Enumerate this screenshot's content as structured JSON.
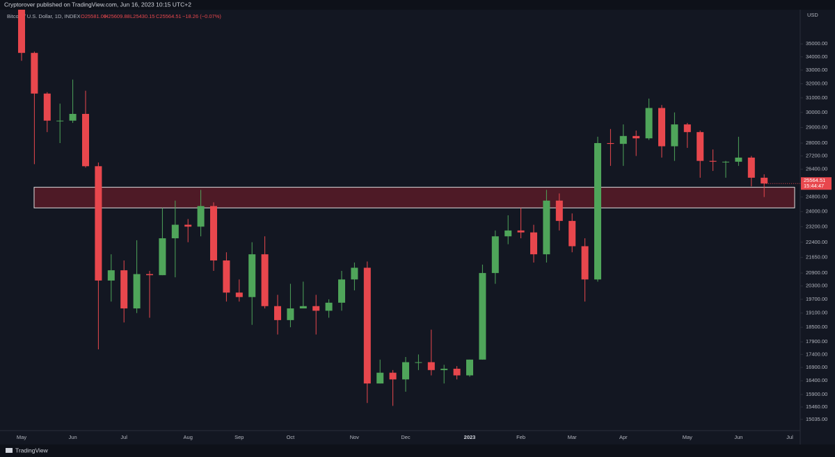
{
  "header": "Cryptorover published on TradingView.com, Jun 16, 2023 10:15 UTC+2",
  "footer": "TradingView",
  "chart_data": {
    "type": "candlestick",
    "legend": {
      "symbol": "Bitcoin / U.S. Dollar, 1D, INDEX",
      "open": "O25581.00",
      "high": "H25609.88",
      "low": "L25430.15",
      "close": "C25564.51",
      "change": "−18.26 (−0.07%)"
    },
    "currency": "USD",
    "price_label": "25564.51",
    "countdown": "15:44:47",
    "categories": [
      "May",
      null,
      null,
      null,
      "Jun",
      null,
      null,
      null,
      "Jul",
      null,
      null,
      null,
      null,
      "Aug",
      null,
      null,
      null,
      "Sep",
      null,
      null,
      null,
      "Oct",
      null,
      null,
      null,
      null,
      "Nov",
      null,
      null,
      null,
      "Dec",
      null,
      null,
      null,
      null,
      "2023",
      null,
      null,
      null,
      "Feb",
      null,
      null,
      null,
      "Mar",
      null,
      null,
      null,
      "Apr",
      null,
      null,
      null,
      null,
      "May",
      null,
      null,
      null,
      "Jun",
      null,
      null,
      null,
      "Jul"
    ],
    "open": [
      38470,
      34300,
      31300,
      29450,
      29450,
      29900,
      26580,
      20550,
      21030,
      19300,
      20850,
      20800,
      22600,
      23300,
      23200,
      24300,
      21500,
      20000,
      19800,
      21800,
      19400,
      18800,
      19300,
      19400,
      19200,
      19550,
      20600,
      21150,
      16300,
      16700,
      16450,
      17100,
      17100,
      16800,
      16850,
      16600,
      17200,
      20900,
      22700,
      23000,
      22900,
      21800,
      24600,
      23500,
      22200,
      20600,
      28000,
      27950,
      28450,
      28300,
      30300,
      27800,
      29200,
      28700,
      26900,
      26850,
      26850,
      27100,
      25900,
      null,
      null
    ],
    "high": [
      39900,
      34400,
      31400,
      30600,
      32300,
      31500,
      26800,
      21800,
      21500,
      22500,
      21000,
      24200,
      24600,
      23600,
      25200,
      24500,
      21900,
      20600,
      22400,
      22700,
      19900,
      20400,
      20500,
      19900,
      19700,
      21000,
      21400,
      21450,
      17200,
      16800,
      17300,
      17400,
      18400,
      17000,
      16950,
      17200,
      21300,
      23000,
      23800,
      24200,
      23300,
      25200,
      25000,
      23900,
      22600,
      28400,
      28900,
      29200,
      28800,
      30950,
      30500,
      30000,
      29300,
      28800,
      27600,
      26900,
      28400,
      27200,
      26100,
      null,
      null
    ],
    "low": [
      33700,
      26700,
      28700,
      28000,
      29300,
      26500,
      17600,
      19600,
      18700,
      19100,
      18900,
      20800,
      20700,
      22400,
      22700,
      21000,
      19600,
      19600,
      18600,
      19300,
      18200,
      18500,
      19300,
      18200,
      18900,
      19200,
      20100,
      15600,
      16300,
      15500,
      16000,
      16800,
      16600,
      16300,
      16450,
      16550,
      17200,
      20400,
      22300,
      22600,
      21400,
      21400,
      23000,
      21900,
      19600,
      20500,
      26600,
      26600,
      27200,
      28200,
      27100,
      26900,
      27700,
      25900,
      26300,
      25900,
      26600,
      25400,
      24800,
      null,
      null
    ],
    "close": [
      34300,
      31300,
      29450,
      29450,
      29900,
      26580,
      20550,
      21030,
      19300,
      20850,
      20800,
      22600,
      23300,
      23200,
      24300,
      21500,
      20000,
      19800,
      21800,
      19400,
      18800,
      19300,
      19400,
      19200,
      19550,
      20600,
      21150,
      16300,
      16700,
      16450,
      17100,
      17100,
      16800,
      16850,
      16600,
      17200,
      20900,
      22700,
      23000,
      22900,
      21800,
      24600,
      23500,
      22200,
      20600,
      28000,
      27950,
      28450,
      28300,
      30300,
      27800,
      29200,
      28700,
      26900,
      26850,
      26850,
      27100,
      25900,
      25564.51,
      null,
      null
    ],
    "up_color": "#4fa55a",
    "down_color": "#e8474d",
    "log_scale": true,
    "grid": false,
    "ylim": [
      14660,
      37800
    ],
    "yticks": [
      {
        "value": 35000,
        "label": "35000.00"
      },
      {
        "value": 34000,
        "label": "34000.00"
      },
      {
        "value": 33000,
        "label": "33000.00"
      },
      {
        "value": 32000,
        "label": "32000.00"
      },
      {
        "value": 31000,
        "label": "31000.00"
      },
      {
        "value": 30000,
        "label": "30000.00"
      },
      {
        "value": 29000,
        "label": "29000.00"
      },
      {
        "value": 28000,
        "label": "28000.00"
      },
      {
        "value": 27200,
        "label": "27200.00"
      },
      {
        "value": 26400,
        "label": "26400.00"
      },
      {
        "value": 24800,
        "label": "24800.00"
      },
      {
        "value": 24000,
        "label": "24000.00"
      },
      {
        "value": 23200,
        "label": "23200.00"
      },
      {
        "value": 22400,
        "label": "22400.00"
      },
      {
        "value": 21650,
        "label": "21650.00"
      },
      {
        "value": 20900,
        "label": "20900.00"
      },
      {
        "value": 20300,
        "label": "20300.00"
      },
      {
        "value": 19700,
        "label": "19700.00"
      },
      {
        "value": 19100,
        "label": "19100.00"
      },
      {
        "value": 18500,
        "label": "18500.00"
      },
      {
        "value": 17900,
        "label": "17900.00"
      },
      {
        "value": 17400,
        "label": "17400.00"
      },
      {
        "value": 16900,
        "label": "16900.00"
      },
      {
        "value": 16400,
        "label": "16400.00"
      },
      {
        "value": 15900,
        "label": "15900.00"
      },
      {
        "value": 15460,
        "label": "15460.00"
      },
      {
        "value": 15035,
        "label": "15035.00"
      }
    ],
    "zone": [
      24200,
      25350
    ]
  }
}
